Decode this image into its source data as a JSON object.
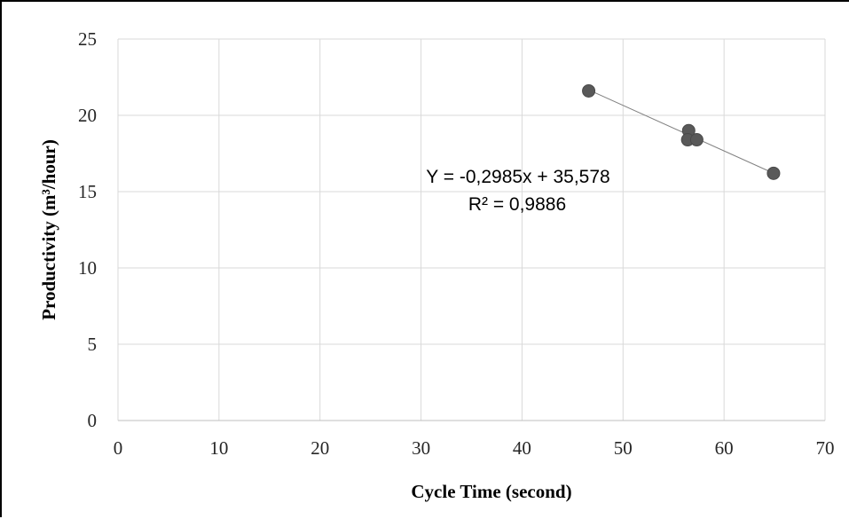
{
  "chart_data": {
    "type": "scatter",
    "title": "",
    "xlabel": "Cycle Time (second)",
    "ylabel": "Productivity (m³/hour)",
    "xlim": [
      0,
      70
    ],
    "ylim": [
      0,
      25
    ],
    "x_ticks": [
      0,
      10,
      20,
      30,
      40,
      50,
      60,
      70
    ],
    "y_ticks": [
      0,
      5,
      10,
      15,
      20,
      25
    ],
    "grid": true,
    "legend": "none",
    "marker_color": "#595959",
    "trendline_color": "#808080",
    "grid_color": "#d9d9d9",
    "points": [
      {
        "x": 46.6,
        "y": 21.6
      },
      {
        "x": 56.5,
        "y": 19.0
      },
      {
        "x": 56.4,
        "y": 18.4
      },
      {
        "x": 57.3,
        "y": 18.4
      },
      {
        "x": 64.9,
        "y": 16.2
      }
    ],
    "trendline": {
      "slope": -0.2985,
      "intercept": 35.578,
      "x_range": [
        46.6,
        64.9
      ]
    },
    "annotations": {
      "equation": "Y = -0,2985x + 35,578",
      "r_squared": "R² = 0,9886"
    }
  }
}
